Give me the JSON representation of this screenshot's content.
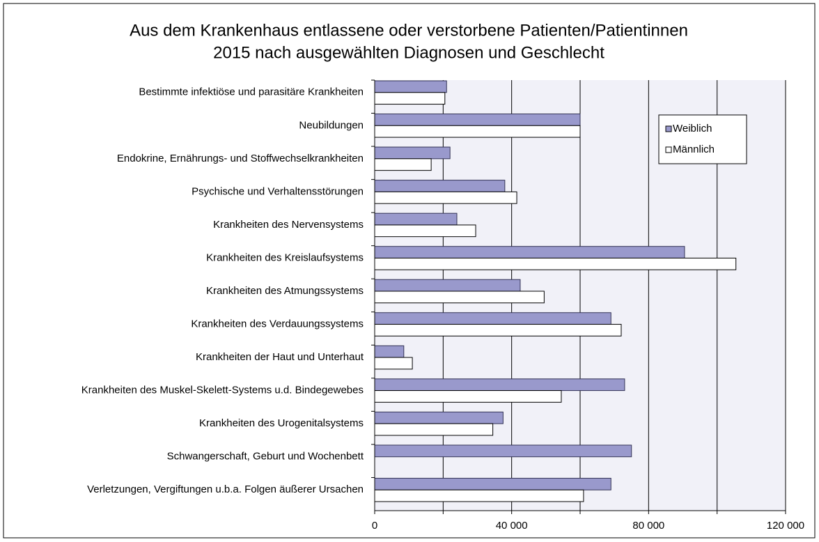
{
  "chart_data": {
    "type": "hbar",
    "title": [
      "Aus dem Krankenhaus entlassene oder verstorbene Patienten/Patientinnen",
      "2015 nach ausgewählten Diagnosen und Geschlecht"
    ],
    "categories": [
      "Bestimmte infektiöse und parasitäre Krankheiten",
      "Neubildungen",
      "Endokrine, Ernährungs- und Stoffwechselkrankheiten",
      "Psychische und Verhaltensstörungen",
      "Krankheiten des Nervensystems",
      "Krankheiten des Kreislaufsystems",
      "Krankheiten des Atmungssystems",
      "Krankheiten des Verdauungssystems",
      "Krankheiten der Haut und Unterhaut",
      "Krankheiten des Muskel-Skelett-Systems u.d. Bindegewebes",
      "Krankheiten des Urogenitalsystems",
      "Schwangerschaft, Geburt und Wochenbett",
      "Verletzungen, Vergiftungen u.b.a. Folgen äußerer Ursachen"
    ],
    "series": [
      {
        "name": "Weiblich",
        "color": "#9999cc",
        "values": [
          21000,
          60000,
          22000,
          38000,
          24000,
          90500,
          42500,
          69000,
          8500,
          73000,
          37500,
          75000,
          69000
        ]
      },
      {
        "name": "Männlich",
        "color": "#ffffff",
        "values": [
          20500,
          60000,
          16500,
          41500,
          29500,
          105500,
          49500,
          72000,
          11000,
          54500,
          34500,
          null,
          61000
        ]
      }
    ],
    "xlim": [
      0,
      120000
    ],
    "xticks": [
      0,
      {
        "value": 40000,
        "label": "40 000"
      },
      {
        "value": 80000,
        "label": "80 000"
      },
      {
        "value": 120000,
        "label": "120 000"
      }
    ],
    "xminor": [
      20000,
      60000,
      100000
    ],
    "grid": true,
    "legend": "upper right"
  }
}
